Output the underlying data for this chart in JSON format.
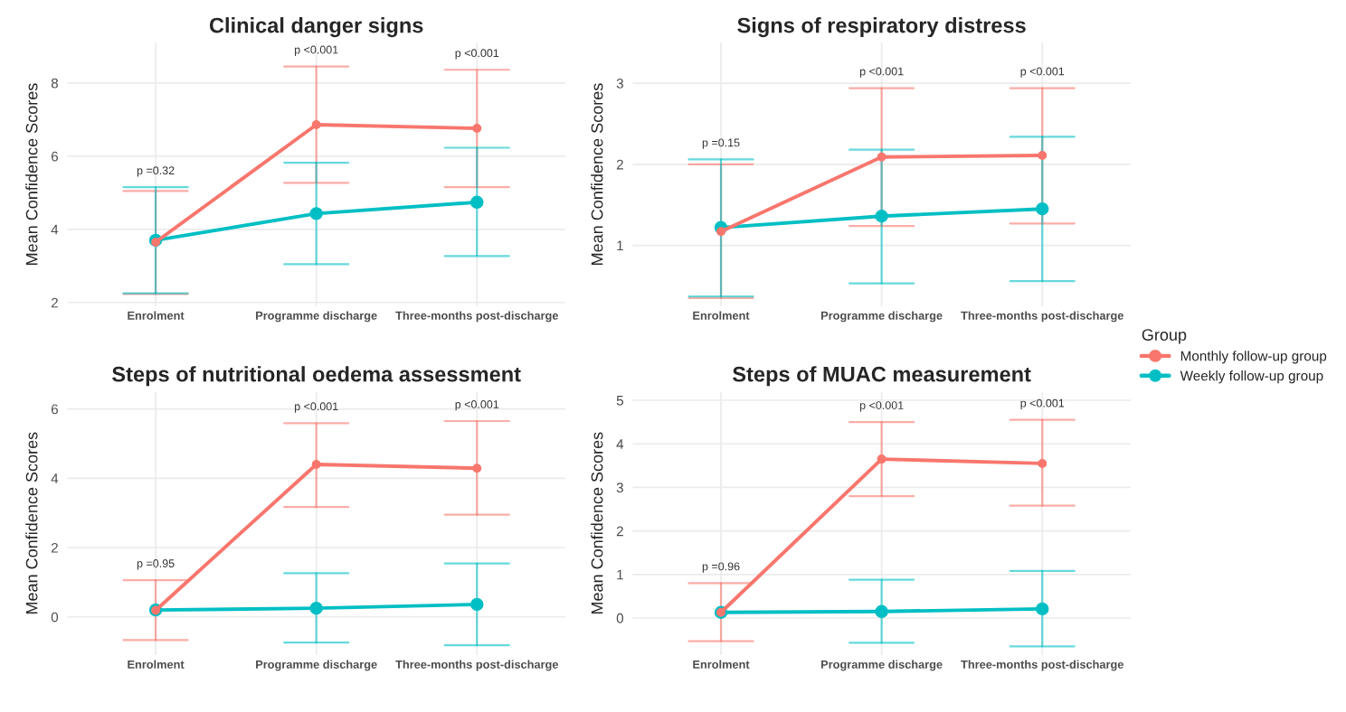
{
  "chart_data": [
    {
      "type": "line",
      "title": "Clinical danger signs",
      "ylabel": "Mean Confidence Scores",
      "categories": [
        "Enrolment",
        "Programme discharge",
        "Three-months post-discharge"
      ],
      "ylim": [
        1.9,
        9.1
      ],
      "yticks": [
        2,
        4,
        6,
        8
      ],
      "grid": true,
      "marker": "circle",
      "legend": "right",
      "legend_title": "Group",
      "series": [
        {
          "name": "Monthly follow-up group",
          "color": "#f8766d",
          "values": [
            3.65,
            6.86,
            6.76
          ],
          "errors": [
            [
              2.23,
              5.05
            ],
            [
              5.27,
              8.45
            ],
            [
              5.15,
              8.36
            ]
          ]
        },
        {
          "name": "Weekly follow-up group",
          "color": "#00bfc4",
          "values": [
            3.7,
            4.43,
            4.74
          ],
          "errors": [
            [
              2.25,
              5.15
            ],
            [
              3.05,
              5.82
            ],
            [
              3.27,
              6.23
            ]
          ]
        }
      ],
      "annotations": [
        "p =0.32",
        "p <0.001",
        "p <0.001"
      ]
    },
    {
      "type": "line",
      "title": "Signs of respiratory distress",
      "ylabel": "Mean Confidence Scores",
      "categories": [
        "Enrolment",
        "Programme discharge",
        "Three-months post-discharge"
      ],
      "ylim": [
        0.25,
        3.5
      ],
      "yticks": [
        1,
        2,
        3
      ],
      "grid": true,
      "marker": "circle",
      "series": [
        {
          "color": "#f8766d",
          "values": [
            1.17,
            2.09,
            2.11
          ],
          "errors": [
            [
              0.35,
              2.0
            ],
            [
              1.24,
              2.94
            ],
            [
              1.27,
              2.94
            ]
          ]
        },
        {
          "color": "#00bfc4",
          "values": [
            1.22,
            1.36,
            1.45
          ],
          "errors": [
            [
              0.37,
              2.06
            ],
            [
              0.53,
              2.18
            ],
            [
              0.56,
              2.34
            ]
          ]
        }
      ],
      "annotations": [
        "p =0.15",
        "p <0.001",
        "p <0.001"
      ]
    },
    {
      "type": "line",
      "title": "Steps of nutritional oedema assessment",
      "ylabel": "Mean Confidence Scores",
      "categories": [
        "Enrolment",
        "Programme discharge",
        "Three-months post-discharge"
      ],
      "ylim": [
        -1.1,
        6.5
      ],
      "yticks": [
        0,
        2,
        4,
        6
      ],
      "grid": true,
      "marker": "circle",
      "series": [
        {
          "color": "#f8766d",
          "values": [
            0.19,
            4.4,
            4.29
          ],
          "errors": [
            [
              -0.67,
              1.06
            ],
            [
              3.17,
              5.59
            ],
            [
              2.95,
              5.65
            ]
          ]
        },
        {
          "color": "#00bfc4",
          "values": [
            0.2,
            0.25,
            0.36
          ],
          "errors": [
            null,
            [
              -0.74,
              1.26
            ],
            [
              -0.82,
              1.54
            ]
          ]
        }
      ],
      "annotations": [
        "p =0.95",
        "p <0.001",
        "p <0.001"
      ]
    },
    {
      "type": "line",
      "title": "Steps of MUAC measurement",
      "ylabel": "Mean Confidence Scores",
      "categories": [
        "Enrolment",
        "Programme discharge",
        "Three-months post-discharge"
      ],
      "ylim": [
        -0.85,
        5.2
      ],
      "yticks": [
        0,
        1,
        2,
        3,
        4,
        5
      ],
      "grid": true,
      "marker": "circle",
      "series": [
        {
          "color": "#f8766d",
          "values": [
            0.13,
            3.65,
            3.55
          ],
          "errors": [
            [
              -0.53,
              0.8
            ],
            [
              2.8,
              4.5
            ],
            [
              2.58,
              4.55
            ]
          ]
        },
        {
          "color": "#00bfc4",
          "values": [
            0.13,
            0.15,
            0.21
          ],
          "errors": [
            null,
            [
              -0.57,
              0.88
            ],
            [
              -0.65,
              1.08
            ]
          ]
        }
      ],
      "annotations": [
        "p =0.96",
        "p <0.001",
        "p <0.001"
      ]
    }
  ]
}
